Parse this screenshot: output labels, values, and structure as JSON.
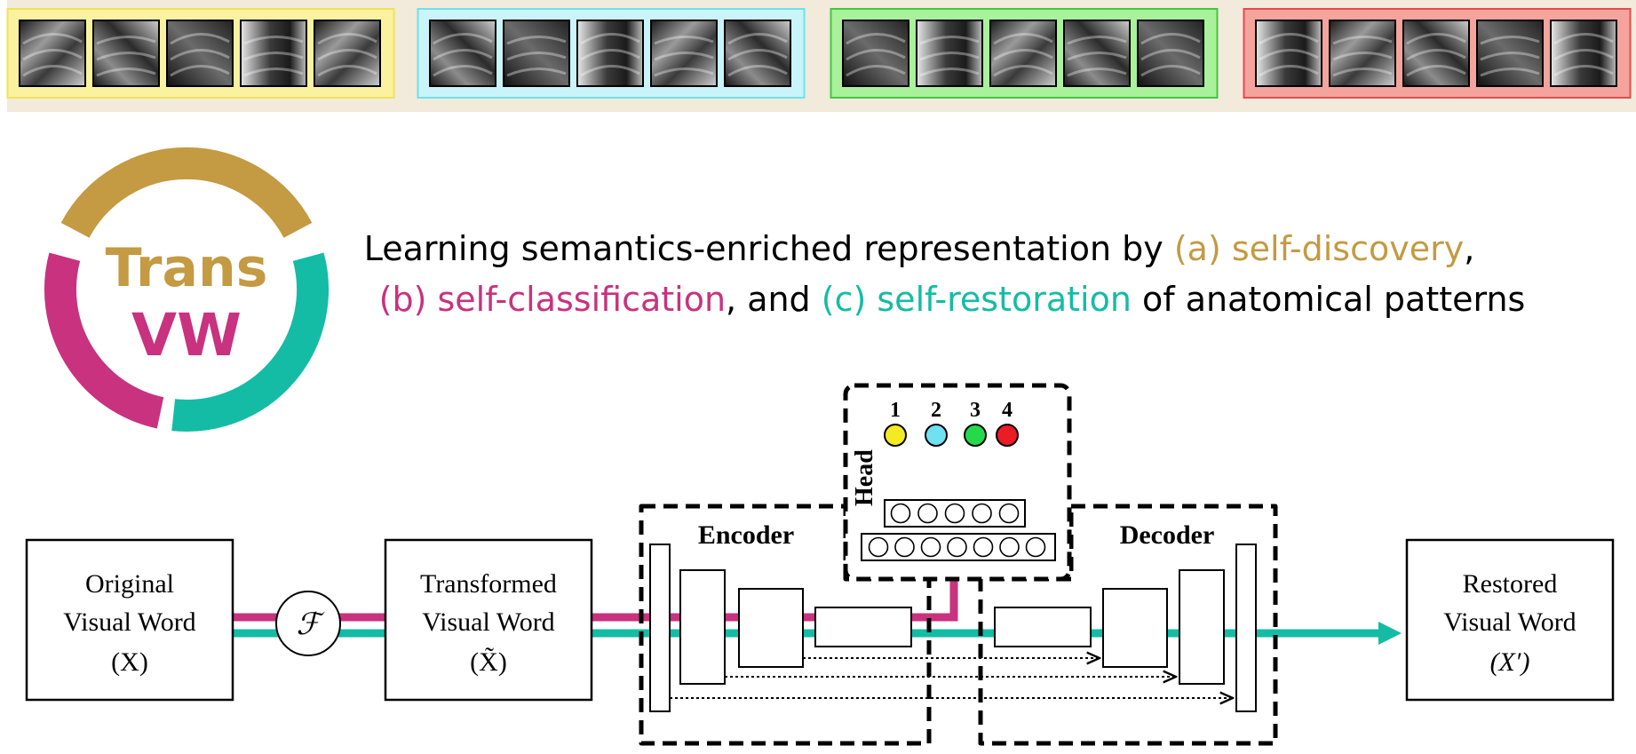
{
  "logo": {
    "line1": "Trans",
    "line2": "VW",
    "colors": {
      "discovery": "#c49a42",
      "classification": "#c8327e",
      "restoration": "#14bca5"
    }
  },
  "headline": {
    "line1_prefix": "Learning semantics-enriched representation by ",
    "line1_a": "(a) self-discovery",
    "line1_suffix": ",",
    "line2_b": "(b) self-classification",
    "line2_mid": ", and ",
    "line2_c": "(c) self-restoration",
    "line2_suffix": " of anatomical patterns"
  },
  "clusters": [
    {
      "id": 1,
      "border": "#f1e15a",
      "fill": "#fbf29f"
    },
    {
      "id": 2,
      "border": "#6ee0ef",
      "fill": "#c9f5fa"
    },
    {
      "id": 3,
      "border": "#3fc93f",
      "fill": "#a9f19a"
    },
    {
      "id": 4,
      "border": "#e84b4b",
      "fill": "#f4a49c"
    }
  ],
  "pipeline": {
    "original": {
      "line1": "Original",
      "line2": "Visual Word",
      "line3": "(X)"
    },
    "transform_symbol": "ℱ",
    "transformed": {
      "line1": "Transformed",
      "line2": "Visual Word",
      "line3": "(X̃)"
    },
    "encoder_label": "Encoder",
    "decoder_label": "Decoder",
    "head_label": "Head",
    "restored": {
      "line1": "Restored",
      "line2": "Visual Word",
      "line3": "(X′)"
    }
  },
  "head_classes": [
    {
      "label": "1",
      "color": "#f4ea24"
    },
    {
      "label": "2",
      "color": "#6fe1f1"
    },
    {
      "label": "3",
      "color": "#26d94a"
    },
    {
      "label": "4",
      "color": "#ec1c24"
    }
  ]
}
